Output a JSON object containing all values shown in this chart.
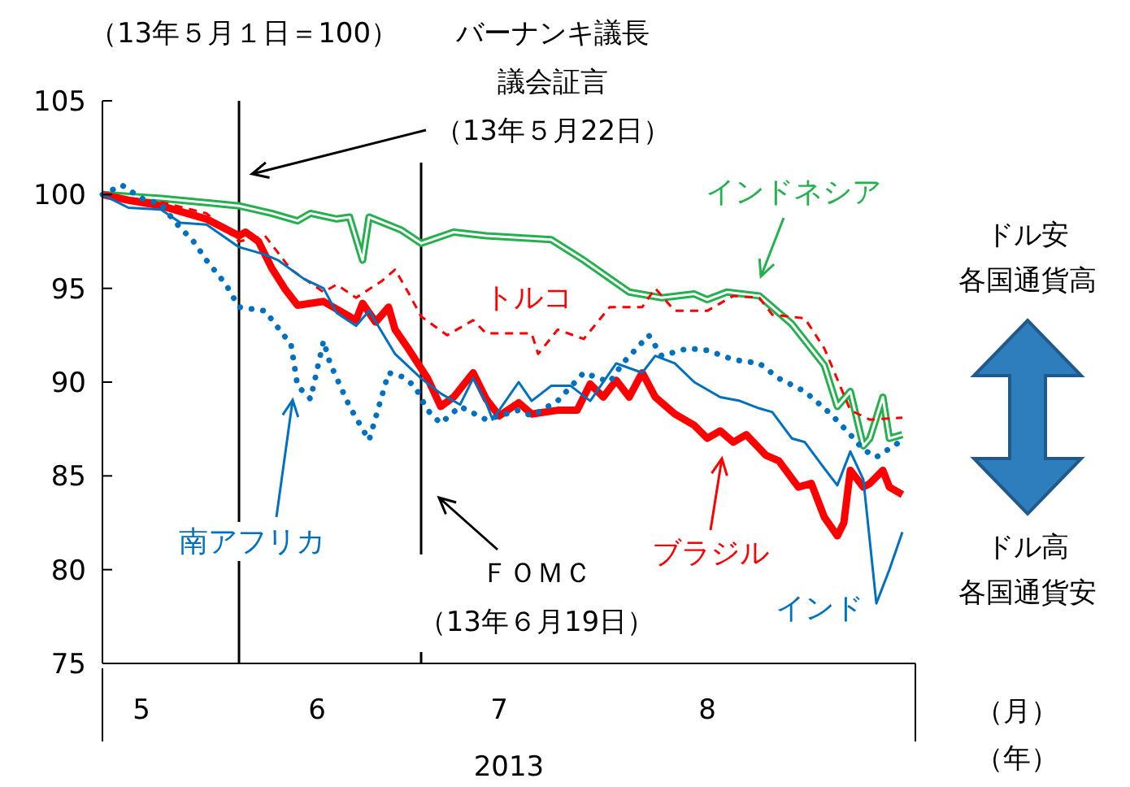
{
  "chart_data": {
    "type": "line",
    "ylabel": "（13年５月１日＝100）",
    "xlabel": "2013",
    "xlim": [
      "2013-05-01",
      "2013-09-03"
    ],
    "xticks": [
      {
        "value": "2013-05-07",
        "label": "5"
      },
      {
        "value": "2013-06-03",
        "label": "6"
      },
      {
        "value": "2013-07-01",
        "label": "7"
      },
      {
        "value": "2013-08-02",
        "label": "8"
      }
    ],
    "ylim": [
      75,
      105
    ],
    "yticks": [
      75,
      80,
      85,
      90,
      95,
      100,
      105
    ],
    "grid": false,
    "ref_lines": [
      {
        "axis": "x",
        "value": "2013-05-22",
        "label": "バーナンキ議長議会証言（13年５月22日）",
        "color": "#000000"
      },
      {
        "axis": "x",
        "value": "2013-06-19",
        "label": "ＦＯＭＣ（13年６月19日）",
        "color": "#000000"
      }
    ],
    "annotations": [
      "（月）",
      "（年）",
      "ドル安各国通貨高",
      "ドル高各国通貨安"
    ],
    "series": [
      {
        "name": "インドネシア",
        "color": "#22b14c",
        "line_style": "solid",
        "x": [
          "2013-05-01",
          "2013-05-10",
          "2013-05-22",
          "2013-05-27",
          "2013-05-31",
          "2013-06-02",
          "2013-06-06",
          "2013-06-08",
          "2013-06-10",
          "2013-06-11",
          "2013-06-16",
          "2013-06-19",
          "2013-06-24",
          "2013-06-29",
          "2013-07-09",
          "2013-07-14",
          "2013-07-21",
          "2013-07-26",
          "2013-07-31",
          "2013-08-02",
          "2013-08-05",
          "2013-08-10",
          "2013-08-12",
          "2013-08-15",
          "2013-08-20",
          "2013-08-22",
          "2013-08-24",
          "2013-08-26",
          "2013-08-27",
          "2013-08-29",
          "2013-08-30",
          "2013-09-01"
        ],
        "values": [
          100,
          99.8,
          99.4,
          99.0,
          98.6,
          99.0,
          98.7,
          98.8,
          96.5,
          98.8,
          98.1,
          97.4,
          98.0,
          97.8,
          97.6,
          96.5,
          94.8,
          94.5,
          94.7,
          94.4,
          94.8,
          94.6,
          94.0,
          93.1,
          90.9,
          88.7,
          89.5,
          86.6,
          87.0,
          89.2,
          87.0,
          87.2
        ]
      },
      {
        "name": "トルコ",
        "color": "#ff0000",
        "line_style": "dashed",
        "x": [
          "2013-05-01",
          "2013-05-10",
          "2013-05-17",
          "2013-05-22",
          "2013-05-26",
          "2013-05-30",
          "2013-06-04",
          "2013-06-06",
          "2013-06-09",
          "2013-06-13",
          "2013-06-15",
          "2013-06-17",
          "2013-06-19",
          "2013-06-23",
          "2013-06-27",
          "2013-06-29",
          "2013-07-06",
          "2013-07-07",
          "2013-07-10",
          "2013-07-14",
          "2013-07-18",
          "2013-07-23",
          "2013-07-25",
          "2013-07-28",
          "2013-08-02",
          "2013-08-06",
          "2013-08-10",
          "2013-08-12",
          "2013-08-17",
          "2013-08-20",
          "2013-08-24",
          "2013-08-27",
          "2013-09-01"
        ],
        "values": [
          100,
          99.6,
          99.0,
          97.5,
          97.8,
          96.0,
          94.8,
          95.2,
          94.5,
          95.4,
          96.0,
          94.8,
          93.5,
          92.5,
          93.3,
          92.6,
          92.6,
          91.5,
          92.8,
          92.3,
          94.0,
          94.0,
          95.0,
          93.8,
          93.8,
          94.6,
          94.5,
          93.6,
          93.4,
          91.8,
          88.5,
          88.0,
          88.1
        ]
      },
      {
        "name": "ブラジル",
        "color": "#ff0000",
        "line_style": "solid",
        "x": [
          "2013-05-01",
          "2013-05-05",
          "2013-05-10",
          "2013-05-13",
          "2013-05-17",
          "2013-05-22",
          "2013-05-23",
          "2013-05-25",
          "2013-05-27",
          "2013-05-29",
          "2013-05-31",
          "2013-06-04",
          "2013-06-06",
          "2013-06-09",
          "2013-06-10",
          "2013-06-12",
          "2013-06-14",
          "2013-06-15",
          "2013-06-17",
          "2013-06-20",
          "2013-06-22",
          "2013-06-24",
          "2013-06-27",
          "2013-06-29",
          "2013-07-01",
          "2013-07-04",
          "2013-07-06",
          "2013-07-10",
          "2013-07-13",
          "2013-07-15",
          "2013-07-17",
          "2013-07-19",
          "2013-07-21",
          "2013-07-23",
          "2013-07-25",
          "2013-07-28",
          "2013-07-31",
          "2013-08-02",
          "2013-08-04",
          "2013-08-06",
          "2013-08-08",
          "2013-08-11",
          "2013-08-13",
          "2013-08-16",
          "2013-08-18",
          "2013-08-20",
          "2013-08-22",
          "2013-08-23",
          "2013-08-24",
          "2013-08-26",
          "2013-08-27",
          "2013-08-29",
          "2013-08-30",
          "2013-09-01"
        ],
        "values": [
          100,
          99.7,
          99.4,
          99.1,
          98.7,
          97.8,
          98.0,
          97.5,
          96.1,
          95.0,
          94.1,
          94.3,
          93.9,
          93.3,
          94.2,
          93.2,
          94.0,
          92.8,
          91.8,
          90.2,
          88.7,
          89.2,
          90.5,
          89.1,
          88.2,
          88.9,
          88.3,
          88.5,
          88.5,
          89.9,
          89.2,
          90.1,
          89.2,
          90.5,
          89.2,
          88.3,
          87.7,
          87.0,
          87.4,
          86.8,
          87.2,
          86.1,
          85.8,
          84.4,
          84.6,
          82.8,
          81.8,
          82.5,
          85.3,
          84.4,
          84.6,
          85.3,
          84.4,
          84.0
        ]
      },
      {
        "name": "インド",
        "color": "#0070c0",
        "line_style": "solid",
        "x": [
          "2013-05-01",
          "2013-05-05",
          "2013-05-10",
          "2013-05-13",
          "2013-05-17",
          "2013-05-22",
          "2013-05-26",
          "2013-05-28",
          "2013-06-01",
          "2013-06-04",
          "2013-06-06",
          "2013-06-09",
          "2013-06-11",
          "2013-06-15",
          "2013-06-19",
          "2013-06-22",
          "2013-06-25",
          "2013-06-27",
          "2013-06-29",
          "2013-06-30",
          "2013-07-04",
          "2013-07-06",
          "2013-07-09",
          "2013-07-12",
          "2013-07-15",
          "2013-07-19",
          "2013-07-23",
          "2013-07-25",
          "2013-07-28",
          "2013-07-31",
          "2013-08-04",
          "2013-08-07",
          "2013-08-10",
          "2013-08-12",
          "2013-08-15",
          "2013-08-17",
          "2013-08-20",
          "2013-08-22",
          "2013-08-24",
          "2013-08-26",
          "2013-08-28",
          "2013-08-30",
          "2013-09-01"
        ],
        "values": [
          100,
          99.3,
          99.2,
          98.5,
          98.4,
          97.2,
          96.8,
          96.5,
          95.5,
          95.0,
          93.7,
          93.0,
          93.8,
          91.5,
          90.2,
          89.4,
          88.8,
          90.2,
          88.9,
          88.0,
          90.0,
          89.0,
          89.8,
          89.8,
          89.0,
          91.0,
          90.5,
          91.4,
          91.0,
          90.0,
          89.2,
          89.0,
          88.6,
          88.4,
          87.0,
          86.8,
          85.4,
          84.5,
          86.3,
          84.8,
          78.2,
          80.0,
          82.0
        ]
      },
      {
        "name": "南アフリカ",
        "color": "#0070c0",
        "line_style": "dotted",
        "x": [
          "2013-05-01",
          "2013-05-04",
          "2013-05-07",
          "2013-05-10",
          "2013-05-12",
          "2013-05-15",
          "2013-05-17",
          "2013-05-20",
          "2013-05-22",
          "2013-05-26",
          "2013-05-30",
          "2013-05-31",
          "2013-06-02",
          "2013-06-04",
          "2013-06-05",
          "2013-06-08",
          "2013-06-11",
          "2013-06-13",
          "2013-06-14",
          "2013-06-16",
          "2013-06-18",
          "2013-06-20",
          "2013-06-22",
          "2013-06-25",
          "2013-06-29",
          "2013-07-04",
          "2013-07-06",
          "2013-07-10",
          "2013-07-14",
          "2013-07-18",
          "2013-07-20",
          "2013-07-24",
          "2013-07-26",
          "2013-07-30",
          "2013-08-02",
          "2013-08-06",
          "2013-08-10",
          "2013-08-13",
          "2013-08-17",
          "2013-08-21",
          "2013-08-24",
          "2013-08-26",
          "2013-08-28",
          "2013-09-01"
        ],
        "values": [
          100,
          100.5,
          99.8,
          99.5,
          98.6,
          97.5,
          96.5,
          95.2,
          94.0,
          93.8,
          92.0,
          89.8,
          89.1,
          92.2,
          91.0,
          88.7,
          86.9,
          89.3,
          90.5,
          90.3,
          89.8,
          88.5,
          87.8,
          88.7,
          88.0,
          88.5,
          88.2,
          89.0,
          90.5,
          90.0,
          91.0,
          92.5,
          91.4,
          91.8,
          91.7,
          91.2,
          91.0,
          90.2,
          89.5,
          88.3,
          87.2,
          86.4,
          86.0,
          86.9
        ]
      }
    ]
  }
}
